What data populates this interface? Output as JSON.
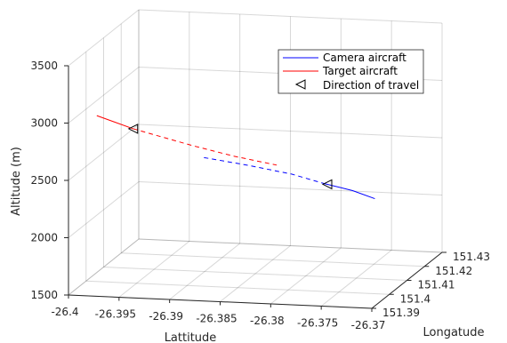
{
  "chart_data": {
    "type": "line",
    "projection": "3d",
    "xlabel": "Lattitude",
    "ylabel": "Longatude",
    "zlabel": "Altitude (m)",
    "xlim": [
      -26.4,
      -26.37
    ],
    "ylim": [
      151.39,
      151.43
    ],
    "zlim": [
      1500,
      3500
    ],
    "x_ticks": [
      "-26.4",
      "-26.395",
      "-26.39",
      "-26.385",
      "-26.38",
      "-26.375",
      "-26.37"
    ],
    "y_ticks": [
      "151.39",
      "151.4",
      "151.41",
      "151.42",
      "151.43"
    ],
    "z_ticks": [
      "1500",
      "2000",
      "2500",
      "3000",
      "3500"
    ],
    "grid": true,
    "legend_position": "top-right",
    "legend": [
      {
        "label": "Camera aircraft",
        "color": "#0000ff",
        "marker": "line"
      },
      {
        "label": "Target aircraft",
        "color": "#ff0000",
        "marker": "line"
      },
      {
        "label": "Direction of travel",
        "color": "#000000",
        "marker": "left-triangle"
      }
    ],
    "series": [
      {
        "name": "Camera aircraft",
        "color": "#0000ff",
        "segments": [
          {
            "style": "dashed",
            "points": [
              {
                "x": -26.3866,
                "y": 151.39,
                "z": 2751
              },
              {
                "x": -26.3822,
                "y": 151.39,
                "z": 2700
              },
              {
                "x": -26.3779,
                "y": 151.39,
                "z": 2640
              },
              {
                "x": -26.3747,
                "y": 151.39,
                "z": 2570
              }
            ]
          },
          {
            "style": "solid",
            "points": [
              {
                "x": -26.3747,
                "y": 151.39,
                "z": 2570
              },
              {
                "x": -26.3719,
                "y": 151.39,
                "z": 2520
              },
              {
                "x": -26.3697,
                "y": 151.39,
                "z": 2458
              }
            ]
          }
        ],
        "direction_marker": {
          "x": -26.3744,
          "y": 151.39,
          "z": 2565
        }
      },
      {
        "name": "Target aircraft",
        "color": "#ff0000",
        "segments": [
          {
            "style": "solid",
            "points": [
              {
                "x": -26.3972,
                "y": 151.39,
                "z": 3076
              },
              {
                "x": -26.3936,
                "y": 151.39,
                "z": 2975
              }
            ]
          },
          {
            "style": "dashed",
            "points": [
              {
                "x": -26.3936,
                "y": 151.39,
                "z": 2975
              },
              {
                "x": -26.3877,
                "y": 151.39,
                "z": 2850
              },
              {
                "x": -26.3836,
                "y": 151.39,
                "z": 2774
              },
              {
                "x": -26.3794,
                "y": 151.39,
                "z": 2713
              }
            ]
          }
        ],
        "direction_marker": {
          "x": -26.3936,
          "y": 151.39,
          "z": 2975
        }
      }
    ]
  }
}
